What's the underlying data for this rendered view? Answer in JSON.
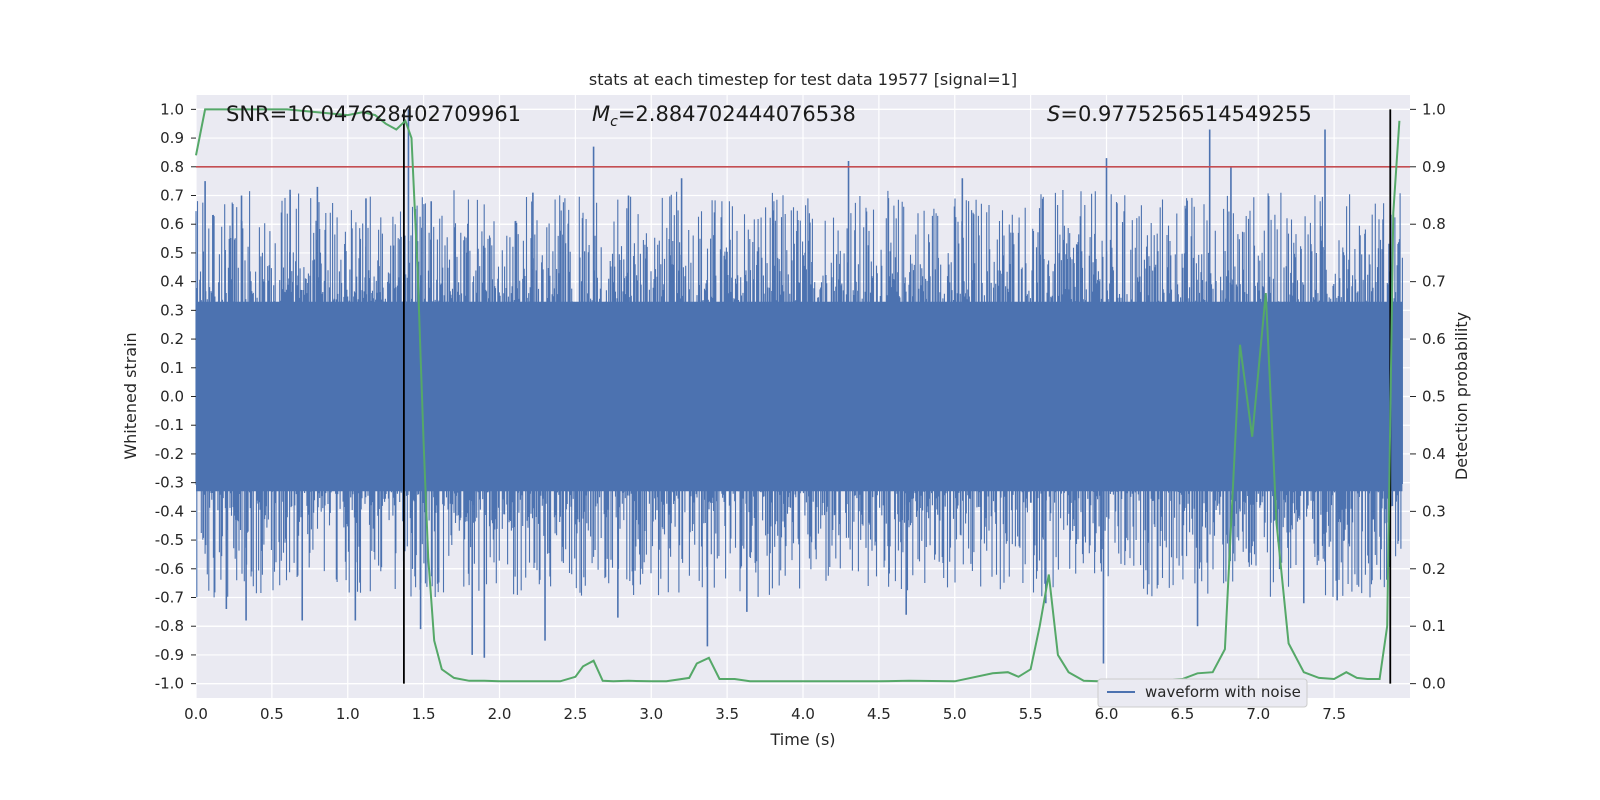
{
  "chart_data": {
    "type": "line",
    "title": "stats at each timestep for test data 19577 [signal=1]",
    "xlabel": "Time (s)",
    "ylabel": "Whitened strain",
    "y2label": "Detection probability",
    "xlim": [
      0.0,
      8.0
    ],
    "ylim": [
      -1.05,
      1.05
    ],
    "y2lim": [
      -0.025,
      1.025
    ],
    "xticks": [
      "0.0",
      "0.5",
      "1.0",
      "1.5",
      "2.0",
      "2.5",
      "3.0",
      "3.5",
      "4.0",
      "4.5",
      "5.0",
      "5.5",
      "6.0",
      "6.5",
      "7.0",
      "7.5"
    ],
    "yticks": [
      "1.0",
      "0.9",
      "0.8",
      "0.7",
      "0.6",
      "0.5",
      "0.4",
      "0.3",
      "0.2",
      "0.1",
      "0.0",
      "-0.1",
      "-0.2",
      "-0.3",
      "-0.4",
      "-0.5",
      "-0.6",
      "-0.7",
      "-0.8",
      "-0.9",
      "-1.0"
    ],
    "y2ticks": [
      "1.0",
      "0.9",
      "0.8",
      "0.7",
      "0.6",
      "0.5",
      "0.4",
      "0.3",
      "0.2",
      "0.1",
      "0.0"
    ],
    "grid": true,
    "legend_position": "bottom-right",
    "annotations": {
      "snr": "SNR=10.047628402709961",
      "mc_symbol": "M",
      "mc_sub": "c",
      "mc_value": "=2.884702444076538",
      "s_symbol": "S",
      "s_value": "=0.9775256514549255"
    },
    "threshold_probability": 0.9,
    "threshold_color": "#c44e52",
    "vertical_lines_s": [
      1.37,
      7.87
    ],
    "series": [
      {
        "name": "waveform with noise",
        "color": "#4c72b0",
        "kind": "dense_noise_waveform",
        "core_band": [
          -0.33,
          0.33
        ],
        "spike_peaks": [
          {
            "t": 0.06,
            "y": 0.75
          },
          {
            "t": 0.3,
            "y": 0.7
          },
          {
            "t": 0.62,
            "y": 0.72
          },
          {
            "t": 0.8,
            "y": 0.73
          },
          {
            "t": 1.12,
            "y": 0.69
          },
          {
            "t": 1.4,
            "y": 1.0
          },
          {
            "t": 1.55,
            "y": 0.68
          },
          {
            "t": 2.22,
            "y": 0.71
          },
          {
            "t": 2.62,
            "y": 0.87
          },
          {
            "t": 2.85,
            "y": 0.7
          },
          {
            "t": 3.2,
            "y": 0.76
          },
          {
            "t": 4.3,
            "y": 0.82
          },
          {
            "t": 5.05,
            "y": 0.76
          },
          {
            "t": 6.0,
            "y": 0.83
          },
          {
            "t": 6.68,
            "y": 0.93
          },
          {
            "t": 6.82,
            "y": 0.8
          },
          {
            "t": 7.44,
            "y": 0.93
          },
          {
            "t": 0.2,
            "y": -0.74
          },
          {
            "t": 0.33,
            "y": -0.78
          },
          {
            "t": 0.7,
            "y": -0.78
          },
          {
            "t": 1.05,
            "y": -0.78
          },
          {
            "t": 1.48,
            "y": -0.81
          },
          {
            "t": 1.82,
            "y": -0.9
          },
          {
            "t": 1.9,
            "y": -0.91
          },
          {
            "t": 2.3,
            "y": -0.85
          },
          {
            "t": 2.78,
            "y": -0.77
          },
          {
            "t": 3.37,
            "y": -0.87
          },
          {
            "t": 3.63,
            "y": -0.75
          },
          {
            "t": 4.68,
            "y": -0.76
          },
          {
            "t": 5.6,
            "y": -0.72
          },
          {
            "t": 5.98,
            "y": -0.93
          },
          {
            "t": 6.6,
            "y": -0.8
          },
          {
            "t": 7.3,
            "y": -0.72
          },
          {
            "t": 7.52,
            "y": -0.71
          }
        ]
      },
      {
        "name": "",
        "color": "#55a868",
        "axis": "right",
        "t": [
          0.0,
          0.06,
          0.2,
          0.4,
          0.6,
          0.8,
          1.0,
          1.1,
          1.18,
          1.25,
          1.32,
          1.38,
          1.42,
          1.46,
          1.5,
          1.53,
          1.57,
          1.62,
          1.7,
          1.8,
          1.9,
          2.0,
          2.2,
          2.4,
          2.5,
          2.55,
          2.62,
          2.68,
          2.75,
          2.85,
          3.0,
          3.1,
          3.25,
          3.3,
          3.38,
          3.45,
          3.55,
          3.65,
          3.75,
          4.0,
          4.5,
          4.7,
          5.0,
          5.25,
          5.35,
          5.42,
          5.5,
          5.56,
          5.62,
          5.68,
          5.75,
          5.85,
          5.95,
          6.2,
          6.5,
          6.6,
          6.7,
          6.78,
          6.88,
          6.96,
          7.05,
          7.12,
          7.2,
          7.3,
          7.4,
          7.5,
          7.58,
          7.65,
          7.72,
          7.8,
          7.85,
          7.89,
          7.93
        ],
        "values": [
          0.92,
          1.0,
          1.0,
          1.0,
          1.0,
          0.995,
          0.99,
          0.995,
          0.99,
          0.975,
          0.965,
          0.98,
          0.95,
          0.72,
          0.42,
          0.22,
          0.075,
          0.025,
          0.01,
          0.005,
          0.005,
          0.004,
          0.004,
          0.004,
          0.012,
          0.03,
          0.04,
          0.005,
          0.004,
          0.005,
          0.004,
          0.004,
          0.01,
          0.035,
          0.045,
          0.008,
          0.008,
          0.004,
          0.004,
          0.004,
          0.004,
          0.005,
          0.004,
          0.018,
          0.02,
          0.012,
          0.025,
          0.1,
          0.19,
          0.05,
          0.02,
          0.005,
          0.004,
          0.004,
          0.008,
          0.018,
          0.02,
          0.06,
          0.59,
          0.43,
          0.68,
          0.28,
          0.07,
          0.02,
          0.01,
          0.008,
          0.02,
          0.01,
          0.008,
          0.008,
          0.1,
          0.82,
          0.98
        ]
      }
    ]
  },
  "legend": {
    "label": "waveform with noise"
  }
}
